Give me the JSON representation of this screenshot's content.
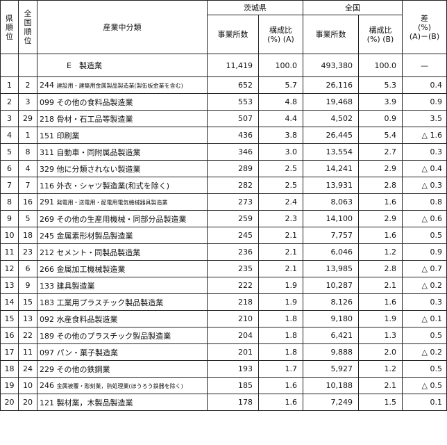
{
  "header": {
    "pref_rank": [
      "県",
      "順",
      "位"
    ],
    "nat_rank": [
      "全",
      "国",
      "順",
      "位"
    ],
    "category": "産業中分類",
    "ibaraki": "茨城県",
    "national": "全国",
    "establishments": "事業所数",
    "ratio_line1": "構成比",
    "ratio_a": "(%) (A)",
    "ratio_b": "(%) (B)",
    "diff_line1": "差",
    "diff_line2": "(%)",
    "diff_line3": "(A)－(B)"
  },
  "total": {
    "category": "E　製造業",
    "ib_count": "11,419",
    "ib_ratio": "100.0",
    "nat_count": "493,380",
    "nat_ratio": "100.0",
    "diff": "—"
  },
  "rows": [
    {
      "pref": "1",
      "nat": "2",
      "code": "244",
      "name": "建設用・建築用金属製品製造業(製缶板金業を含む)",
      "small": true,
      "ib_count": "652",
      "ib_ratio": "5.7",
      "nat_count": "26,116",
      "nat_ratio": "5.3",
      "diff": "0.4"
    },
    {
      "pref": "2",
      "nat": "3",
      "code": "099",
      "name": "その他の食料品製造業",
      "small": false,
      "ib_count": "553",
      "ib_ratio": "4.8",
      "nat_count": "19,468",
      "nat_ratio": "3.9",
      "diff": "0.9"
    },
    {
      "pref": "3",
      "nat": "29",
      "code": "218",
      "name": "骨材・石工品等製造業",
      "small": false,
      "ib_count": "507",
      "ib_ratio": "4.4",
      "nat_count": "4,502",
      "nat_ratio": "0.9",
      "diff": "3.5"
    },
    {
      "pref": "4",
      "nat": "1",
      "code": "151",
      "name": "印刷業",
      "small": false,
      "ib_count": "436",
      "ib_ratio": "3.8",
      "nat_count": "26,445",
      "nat_ratio": "5.4",
      "diff": "△ 1.6"
    },
    {
      "pref": "5",
      "nat": "8",
      "code": "311",
      "name": "自動車・同附属品製造業",
      "small": false,
      "ib_count": "346",
      "ib_ratio": "3.0",
      "nat_count": "13,554",
      "nat_ratio": "2.7",
      "diff": "0.3"
    },
    {
      "pref": "6",
      "nat": "4",
      "code": "329",
      "name": "他に分類されない製造業",
      "small": false,
      "ib_count": "289",
      "ib_ratio": "2.5",
      "nat_count": "14,241",
      "nat_ratio": "2.9",
      "diff": "△ 0.4"
    },
    {
      "pref": "7",
      "nat": "7",
      "code": "116",
      "name": "外衣・シャツ製造業(和式を除く)",
      "small": false,
      "ib_count": "282",
      "ib_ratio": "2.5",
      "nat_count": "13,931",
      "nat_ratio": "2.8",
      "diff": "△ 0.3"
    },
    {
      "pref": "8",
      "nat": "16",
      "code": "291",
      "name": "発電用・送電用・配電用電気機械器具製造業",
      "small": true,
      "ib_count": "273",
      "ib_ratio": "2.4",
      "nat_count": "8,063",
      "nat_ratio": "1.6",
      "diff": "0.8"
    },
    {
      "pref": "9",
      "nat": "5",
      "code": "269",
      "name": "その他の生産用機械・同部分品製造業",
      "small": false,
      "ib_count": "259",
      "ib_ratio": "2.3",
      "nat_count": "14,100",
      "nat_ratio": "2.9",
      "diff": "△ 0.6"
    },
    {
      "pref": "10",
      "nat": "18",
      "code": "245",
      "name": "金属素形材製品製造業",
      "small": false,
      "ib_count": "245",
      "ib_ratio": "2.1",
      "nat_count": "7,757",
      "nat_ratio": "1.6",
      "diff": "0.5"
    },
    {
      "pref": "11",
      "nat": "23",
      "code": "212",
      "name": "セメント・同製品製造業",
      "small": false,
      "ib_count": "236",
      "ib_ratio": "2.1",
      "nat_count": "6,046",
      "nat_ratio": "1.2",
      "diff": "0.9"
    },
    {
      "pref": "12",
      "nat": "6",
      "code": "266",
      "name": "金属加工機械製造業",
      "small": false,
      "ib_count": "235",
      "ib_ratio": "2.1",
      "nat_count": "13,985",
      "nat_ratio": "2.8",
      "diff": "△ 0.7"
    },
    {
      "pref": "13",
      "nat": "9",
      "code": "133",
      "name": "建具製造業",
      "small": false,
      "ib_count": "222",
      "ib_ratio": "1.9",
      "nat_count": "10,287",
      "nat_ratio": "2.1",
      "diff": "△ 0.2"
    },
    {
      "pref": "14",
      "nat": "15",
      "code": "183",
      "name": "工業用プラスチック製品製造業",
      "small": false,
      "ib_count": "218",
      "ib_ratio": "1.9",
      "nat_count": "8,126",
      "nat_ratio": "1.6",
      "diff": "0.3"
    },
    {
      "pref": "15",
      "nat": "13",
      "code": "092",
      "name": "水産食料品製造業",
      "small": false,
      "ib_count": "210",
      "ib_ratio": "1.8",
      "nat_count": "9,180",
      "nat_ratio": "1.9",
      "diff": "△ 0.1"
    },
    {
      "pref": "16",
      "nat": "22",
      "code": "189",
      "name": "その他のプラスチック製品製造業",
      "small": false,
      "ib_count": "204",
      "ib_ratio": "1.8",
      "nat_count": "6,421",
      "nat_ratio": "1.3",
      "diff": "0.5"
    },
    {
      "pref": "17",
      "nat": "11",
      "code": "097",
      "name": "パン・菓子製造業",
      "small": false,
      "ib_count": "201",
      "ib_ratio": "1.8",
      "nat_count": "9,888",
      "nat_ratio": "2.0",
      "diff": "△ 0.2"
    },
    {
      "pref": "18",
      "nat": "24",
      "code": "229",
      "name": "その他の鉄鋼業",
      "small": false,
      "ib_count": "193",
      "ib_ratio": "1.7",
      "nat_count": "5,927",
      "nat_ratio": "1.2",
      "diff": "0.5"
    },
    {
      "pref": "19",
      "nat": "10",
      "code": "246",
      "name": "金属被覆・彫刻業，熱処理業(ほうろう鉄器を除く)",
      "small": true,
      "ib_count": "185",
      "ib_ratio": "1.6",
      "nat_count": "10,188",
      "nat_ratio": "2.1",
      "diff": "△ 0.5"
    },
    {
      "pref": "20",
      "nat": "20",
      "code": "121",
      "name": "製材業，木製品製造業",
      "small": false,
      "ib_count": "178",
      "ib_ratio": "1.6",
      "nat_count": "7,249",
      "nat_ratio": "1.5",
      "diff": "0.1"
    }
  ]
}
